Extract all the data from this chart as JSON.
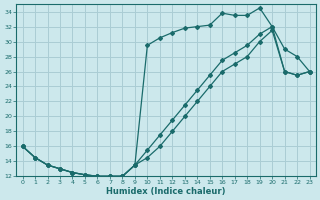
{
  "xlabel": "Humidex (Indice chaleur)",
  "bg_color": "#cce8ec",
  "grid_color": "#aacdd4",
  "line_color": "#1a6b6b",
  "xlim": [
    -0.5,
    23.5
  ],
  "ylim": [
    12,
    35
  ],
  "yticks": [
    12,
    14,
    16,
    18,
    20,
    22,
    24,
    26,
    28,
    30,
    32,
    34
  ],
  "xticks": [
    0,
    1,
    2,
    3,
    4,
    5,
    6,
    7,
    8,
    9,
    10,
    11,
    12,
    13,
    14,
    15,
    16,
    17,
    18,
    19,
    20,
    21,
    22,
    23
  ],
  "line1_x": [
    0,
    1,
    2,
    3,
    4,
    5,
    6,
    7,
    8,
    9,
    10,
    11,
    12,
    13,
    14,
    15,
    16,
    17,
    18,
    19,
    20,
    21,
    22,
    23
  ],
  "line1_y": [
    16.0,
    14.5,
    13.5,
    13.0,
    12.5,
    12.2,
    12.0,
    12.0,
    12.0,
    13.5,
    29.5,
    30.5,
    31.2,
    31.8,
    32.0,
    32.2,
    33.8,
    33.5,
    33.5,
    34.5,
    32.0,
    29.0,
    28.0,
    26.0
  ],
  "line2_x": [
    0,
    1,
    2,
    3,
    4,
    5,
    6,
    7,
    8,
    9,
    10,
    11,
    12,
    13,
    14,
    15,
    16,
    17,
    18,
    19,
    20,
    21,
    22,
    23
  ],
  "line2_y": [
    16.0,
    14.5,
    13.5,
    13.0,
    12.5,
    12.2,
    12.0,
    12.0,
    12.0,
    13.5,
    15.5,
    17.5,
    19.5,
    21.5,
    23.5,
    25.5,
    27.5,
    28.5,
    29.5,
    31.0,
    32.0,
    26.0,
    25.5,
    26.0
  ],
  "line3_x": [
    0,
    1,
    2,
    3,
    4,
    5,
    6,
    7,
    8,
    9,
    10,
    11,
    12,
    13,
    14,
    15,
    16,
    17,
    18,
    19,
    20,
    21,
    22,
    23
  ],
  "line3_y": [
    16.0,
    14.5,
    13.5,
    13.0,
    12.5,
    12.2,
    12.0,
    12.0,
    12.0,
    13.5,
    14.5,
    16.0,
    18.0,
    20.0,
    22.0,
    24.0,
    26.0,
    27.0,
    28.0,
    30.0,
    31.5,
    26.0,
    25.5,
    26.0
  ]
}
